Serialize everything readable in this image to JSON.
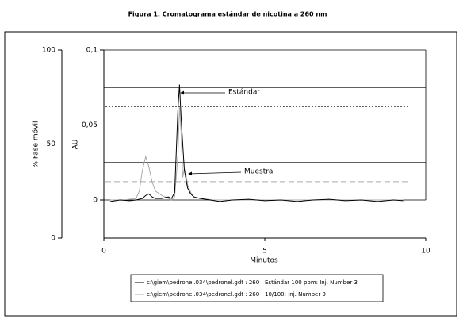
{
  "chart_data": {
    "type": "line",
    "title": "Figura 1. Cromatograma estándar de nicotina a 260 nm",
    "xlabel": "Minutos",
    "ylabel": "AU",
    "y2label": "% Fase móvil",
    "xlim": [
      0,
      10
    ],
    "xticks": [
      0,
      5,
      10
    ],
    "ylim": [
      -0.0254,
      0.1
    ],
    "yticks": [
      0,
      {
        "value": 0.05,
        "label": "0,05"
      },
      {
        "value": 0.1,
        "label": "0,1"
      }
    ],
    "ygrid": [
      0.025,
      0.075
    ],
    "y2lim": [
      0,
      100
    ],
    "y2ticks": [
      0,
      50,
      100
    ],
    "phase_lines": [
      {
        "value": 70,
        "color": "#000000"
      },
      {
        "value": 30,
        "color": "#aaaaaa"
      }
    ],
    "annotations": [
      "Estándar",
      "Muestra"
    ],
    "legend": "bottom",
    "series": [
      {
        "name": "c:\\giem\\pedronel.034\\pedronel.gdt : 260 : Estándar 100 ppm: Inj. Number 3",
        "color": "#000000",
        "x": [
          0.2,
          0.5,
          0.8,
          1.0,
          1.2,
          1.3,
          1.4,
          1.5,
          1.6,
          1.8,
          2.0,
          2.1,
          2.2,
          2.3,
          2.35,
          2.4,
          2.5,
          2.6,
          2.7,
          2.8,
          3.0,
          3.3,
          3.6,
          4.0,
          4.5,
          5.0,
          5.5,
          6.0,
          6.5,
          7.0,
          7.5,
          8.0,
          8.5,
          9.0,
          9.3
        ],
        "values": [
          -0.001,
          0.0,
          -0.0005,
          0.0,
          0.001,
          0.003,
          0.004,
          0.002,
          0.001,
          0.001,
          0.002,
          0.001,
          0.005,
          0.06,
          0.077,
          0.055,
          0.02,
          0.008,
          0.004,
          0.002,
          0.001,
          0.0,
          -0.001,
          0.0,
          0.0005,
          -0.0005,
          0.0,
          -0.001,
          0.0,
          0.0005,
          -0.0005,
          0.0,
          -0.001,
          0.0,
          -0.0005
        ]
      },
      {
        "name": "c:\\giem\\pedronel.034\\pedronel.gdt : 260 : 10/100: Inj. Number 9",
        "color": "#aaaaaa",
        "x": [
          0.2,
          0.6,
          1.0,
          1.1,
          1.2,
          1.3,
          1.4,
          1.5,
          1.6,
          1.8,
          2.0,
          2.1,
          2.2,
          2.3,
          2.35,
          2.4,
          2.45,
          2.5,
          2.55,
          2.6,
          2.7,
          2.8,
          3.0,
          3.4,
          4.0,
          5.0,
          6.0,
          7.0,
          8.0,
          9.0,
          9.3
        ],
        "values": [
          0.0,
          0.0,
          0.001,
          0.006,
          0.02,
          0.029,
          0.022,
          0.012,
          0.006,
          0.003,
          0.001,
          0.0,
          0.002,
          0.03,
          0.062,
          0.045,
          0.015,
          0.021,
          0.017,
          0.01,
          0.005,
          0.002,
          0.001,
          0.0,
          0.0,
          0.0,
          0.0,
          0.0,
          0.0,
          0.0,
          0.0
        ]
      }
    ]
  }
}
